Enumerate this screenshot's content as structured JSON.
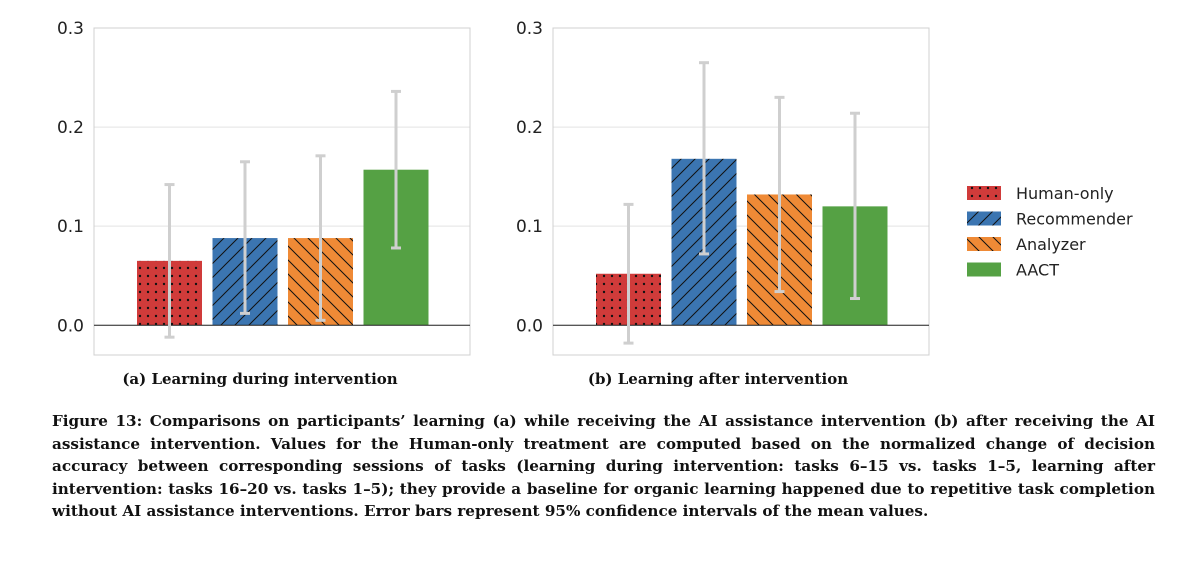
{
  "chart_data": [
    {
      "type": "bar",
      "subtitle": "(a) Learning during intervention",
      "ylim": [
        -0.03,
        0.3
      ],
      "yticks": [
        "0.0",
        "0.1",
        "0.2",
        "0.3"
      ],
      "grid": true,
      "series": [
        {
          "name": "Human-only",
          "value": 0.065,
          "ci": [
            -0.012,
            0.142
          ]
        },
        {
          "name": "Recommender",
          "value": 0.088,
          "ci": [
            0.012,
            0.165
          ]
        },
        {
          "name": "Analyzer",
          "value": 0.088,
          "ci": [
            0.005,
            0.171
          ]
        },
        {
          "name": "AACT",
          "value": 0.157,
          "ci": [
            0.078,
            0.236
          ]
        }
      ]
    },
    {
      "type": "bar",
      "subtitle": "(b) Learning after intervention",
      "ylim": [
        -0.03,
        0.3
      ],
      "yticks": [
        "0.0",
        "0.1",
        "0.2",
        "0.3"
      ],
      "grid": true,
      "series": [
        {
          "name": "Human-only",
          "value": 0.052,
          "ci": [
            -0.018,
            0.122
          ]
        },
        {
          "name": "Recommender",
          "value": 0.168,
          "ci": [
            0.072,
            0.265
          ]
        },
        {
          "name": "Analyzer",
          "value": 0.132,
          "ci": [
            0.034,
            0.23
          ]
        },
        {
          "name": "AACT",
          "value": 0.12,
          "ci": [
            0.027,
            0.214
          ]
        }
      ]
    }
  ],
  "legend": {
    "placement": "right",
    "items": [
      {
        "label": "Human-only",
        "color": "#d03b3a",
        "pattern": "dots"
      },
      {
        "label": "Recommender",
        "color": "#3b75b1",
        "pattern": "forward-diagonal"
      },
      {
        "label": "Analyzer",
        "color": "#ef8a36",
        "pattern": "back-diagonal"
      },
      {
        "label": "AACT",
        "color": "#55a144",
        "pattern": "none"
      }
    ]
  },
  "caption": "Figure 13: Comparisons on participants’ learning (a) while receiving the AI assistance intervention (b) after receiving the AI assistance intervention. Values for the Human-only treatment are computed based on the normalized change of decision accuracy between corresponding sessions of tasks (learning during intervention: tasks 6–15 vs. tasks 1–5, learning after intervention: tasks 16–20 vs. tasks 1–5); they provide a baseline for organic learning happened due to repetitive task completion without AI assistance interventions. Error bars represent 95% confidence intervals of the mean values."
}
